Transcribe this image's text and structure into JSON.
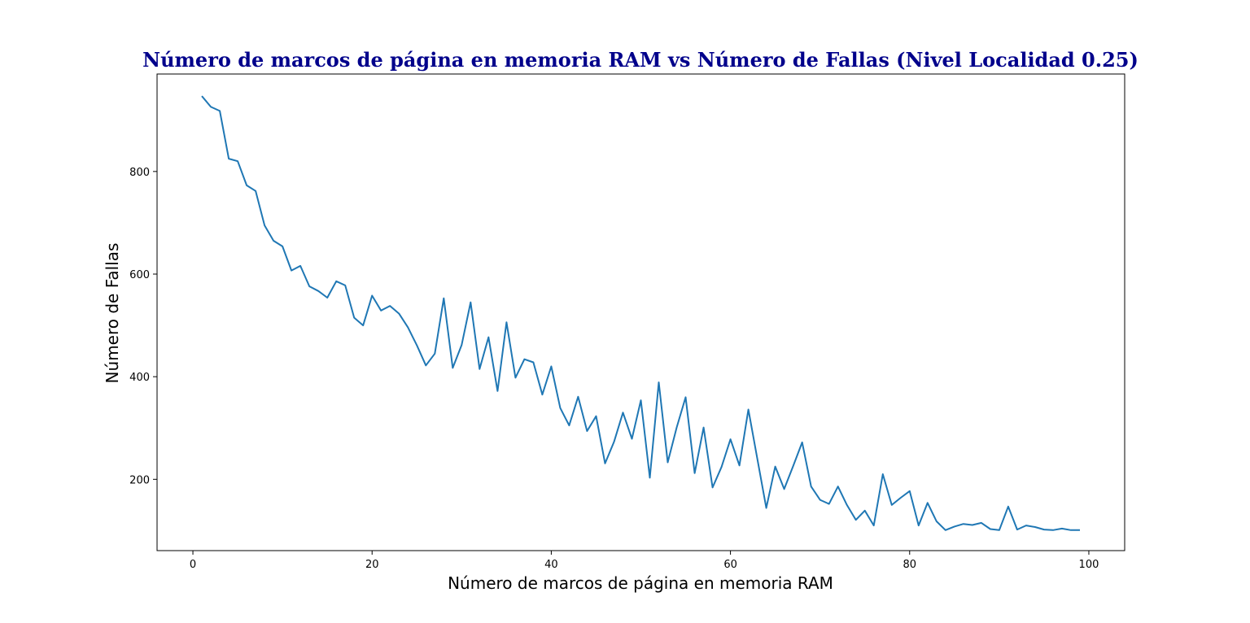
{
  "colors": {
    "title": "#00008b",
    "series": "#1f77b4",
    "axis": "#000000",
    "background": "#ffffff"
  },
  "chart_data": {
    "type": "line",
    "title": "Número de marcos de página en memoria RAM vs Número de Fallas (Nivel Localidad 0.25)",
    "xlabel": "Número de marcos de página en memoria RAM",
    "ylabel": "Número de Fallas",
    "xlim": [
      -4,
      104
    ],
    "ylim": [
      61,
      990
    ],
    "xticks": [
      0,
      20,
      40,
      60,
      80,
      100
    ],
    "yticks": [
      200,
      400,
      600,
      800
    ],
    "grid": false,
    "x": [
      1,
      2,
      3,
      4,
      5,
      6,
      7,
      8,
      9,
      10,
      11,
      12,
      13,
      14,
      15,
      16,
      17,
      18,
      19,
      20,
      21,
      22,
      23,
      24,
      25,
      26,
      27,
      28,
      29,
      30,
      31,
      32,
      33,
      34,
      35,
      36,
      37,
      38,
      39,
      40,
      41,
      42,
      43,
      44,
      45,
      46,
      47,
      48,
      49,
      50,
      51,
      52,
      53,
      54,
      55,
      56,
      57,
      58,
      59,
      60,
      61,
      62,
      63,
      64,
      65,
      66,
      67,
      68,
      69,
      70,
      71,
      72,
      73,
      74,
      75,
      76,
      77,
      78,
      79,
      80,
      81,
      82,
      83,
      84,
      85,
      86,
      87,
      88,
      89,
      90,
      91,
      92,
      93,
      94,
      95,
      96,
      97,
      98,
      99
    ],
    "series": [
      {
        "values": [
          947,
          926,
          918,
          825,
          820,
          773,
          762,
          695,
          665,
          654,
          607,
          616,
          576,
          567,
          554,
          586,
          578,
          515,
          500,
          558,
          529,
          538,
          523,
          496,
          461,
          422,
          445,
          553,
          417,
          462,
          545,
          415,
          477,
          372,
          506,
          398,
          434,
          428,
          365,
          420,
          339,
          305,
          361,
          294,
          323,
          231,
          273,
          330,
          279,
          354,
          203,
          389,
          233,
          301,
          360,
          212,
          301,
          184,
          224,
          278,
          227,
          336,
          240,
          144,
          225,
          181,
          226,
          272,
          186,
          160,
          152,
          186,
          150,
          121,
          139,
          110,
          210,
          150,
          164,
          177,
          110,
          154,
          118,
          101,
          108,
          113,
          111,
          115,
          103,
          101,
          147,
          102,
          110,
          107,
          102,
          101,
          104,
          101,
          101
        ]
      }
    ]
  }
}
